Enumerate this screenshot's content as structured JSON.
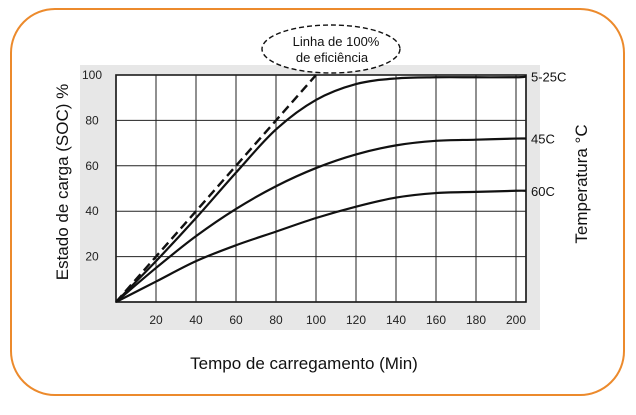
{
  "chart_data": {
    "type": "line",
    "xlabel": "Tempo de carregamento (Min)",
    "ylabel": "Estado de carga (SOC) %",
    "y2label": "Temperatura °C",
    "xlim": [
      0,
      205
    ],
    "ylim": [
      0,
      100
    ],
    "xticks": [
      20,
      40,
      60,
      80,
      100,
      120,
      140,
      160,
      180,
      200
    ],
    "yticks": [
      20,
      40,
      60,
      80,
      100
    ],
    "grid": true,
    "annotation": {
      "lines": [
        "Linha de 100%",
        "de eficiência"
      ]
    },
    "reference_line": {
      "label": "Linha de 100%",
      "style": "dashed",
      "x": [
        0,
        20,
        40,
        60,
        80,
        100
      ],
      "y": [
        0,
        20,
        40,
        60,
        80,
        100
      ]
    },
    "series": [
      {
        "name": "5-25C",
        "x": [
          0,
          20,
          40,
          60,
          80,
          100,
          120,
          140,
          160,
          180,
          200,
          205
        ],
        "y": [
          0,
          18,
          37,
          57,
          76,
          89,
          96,
          98.5,
          99,
          99,
          99,
          99.3
        ]
      },
      {
        "name": "45C",
        "x": [
          0,
          20,
          40,
          60,
          80,
          100,
          120,
          140,
          160,
          180,
          200,
          205
        ],
        "y": [
          0,
          15,
          29,
          41,
          51,
          59,
          65,
          69,
          71,
          71.5,
          72,
          72
        ]
      },
      {
        "name": "60C",
        "x": [
          0,
          20,
          40,
          60,
          80,
          100,
          120,
          140,
          160,
          180,
          200,
          205
        ],
        "y": [
          0,
          9,
          18,
          25,
          31,
          37,
          42,
          46,
          48,
          48.5,
          49,
          49
        ]
      }
    ]
  }
}
